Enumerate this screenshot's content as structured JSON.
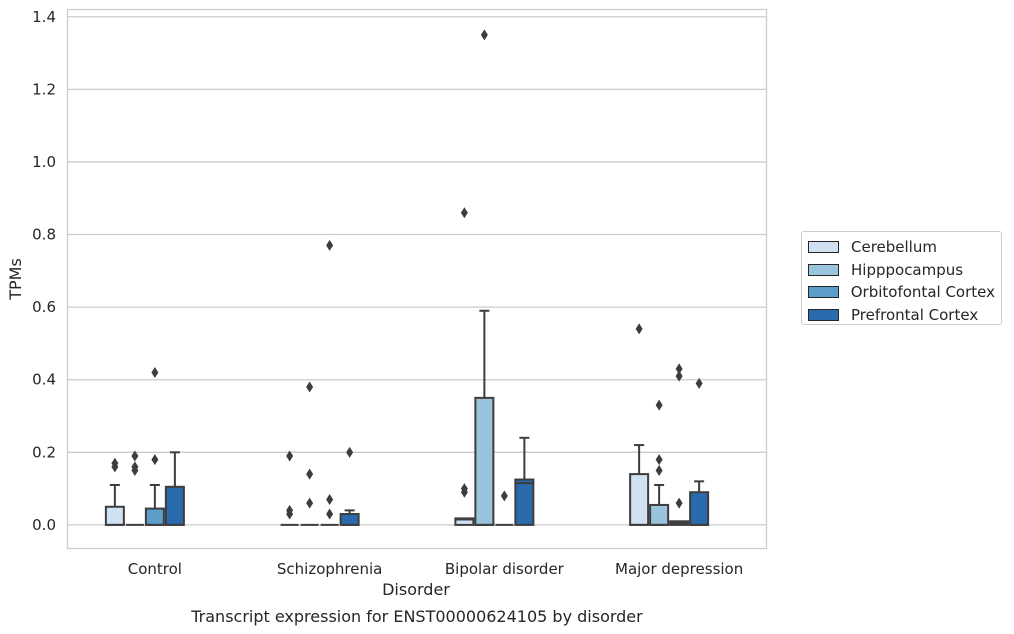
{
  "chart_data": {
    "type": "box",
    "title": "Transcript expression for ENST00000624105 by disorder",
    "xlabel": "Disorder",
    "ylabel": "TPMs",
    "categories": [
      "Control",
      "Schizophrenia",
      "Bipolar disorder",
      "Major depression"
    ],
    "ylim": [
      -0.065,
      1.42
    ],
    "yticks": [
      "0.0",
      "0.2",
      "0.4",
      "0.6",
      "0.8",
      "1.0",
      "1.2",
      "1.4"
    ],
    "grid": "horizontal",
    "legend_position": "right",
    "series": [
      {
        "name": "Cerebellum",
        "color": "#d0e1f2",
        "boxes": [
          {
            "q1": 0.0,
            "median": 0.0,
            "q3": 0.05,
            "whisker_low": 0.0,
            "whisker_high": 0.11,
            "outliers": [
              0.16,
              0.17
            ]
          },
          {
            "q1": 0.0,
            "median": 0.0,
            "q3": 0.0,
            "whisker_low": 0.0,
            "whisker_high": 0.0,
            "outliers": [
              0.03,
              0.04,
              0.19
            ]
          },
          {
            "q1": 0.0,
            "median": 0.015,
            "q3": 0.018,
            "whisker_low": 0.0,
            "whisker_high": 0.018,
            "outliers": [
              0.09,
              0.1,
              0.86
            ]
          },
          {
            "q1": 0.0,
            "median": 0.0,
            "q3": 0.14,
            "whisker_low": 0.0,
            "whisker_high": 0.22,
            "outliers": [
              0.54
            ]
          }
        ]
      },
      {
        "name": "Hipppocampus",
        "color": "#9ac3dd",
        "boxes": [
          {
            "q1": 0.0,
            "median": 0.0,
            "q3": 0.0,
            "whisker_low": 0.0,
            "whisker_high": 0.0,
            "outliers": [
              0.15,
              0.16,
              0.19
            ]
          },
          {
            "q1": 0.0,
            "median": 0.0,
            "q3": 0.0,
            "whisker_low": 0.0,
            "whisker_high": 0.0,
            "outliers": [
              0.06,
              0.14,
              0.38
            ]
          },
          {
            "q1": 0.0,
            "median": 0.0,
            "q3": 0.35,
            "whisker_low": 0.0,
            "whisker_high": 0.59,
            "outliers": [
              1.35
            ]
          },
          {
            "q1": 0.0,
            "median": 0.0,
            "q3": 0.055,
            "whisker_low": 0.0,
            "whisker_high": 0.11,
            "outliers": [
              0.15,
              0.18,
              0.33
            ]
          }
        ]
      },
      {
        "name": "Orbitofontal Cortex",
        "color": "#5a9ec9",
        "boxes": [
          {
            "q1": 0.0,
            "median": 0.0,
            "q3": 0.045,
            "whisker_low": 0.0,
            "whisker_high": 0.11,
            "outliers": [
              0.18,
              0.42
            ]
          },
          {
            "q1": 0.0,
            "median": 0.0,
            "q3": 0.0,
            "whisker_low": 0.0,
            "whisker_high": 0.0,
            "outliers": [
              0.03,
              0.07,
              0.77
            ]
          },
          {
            "q1": 0.0,
            "median": 0.0,
            "q3": 0.0,
            "whisker_low": 0.0,
            "whisker_high": 0.0,
            "outliers": [
              0.08
            ]
          },
          {
            "q1": 0.0,
            "median": 0.005,
            "q3": 0.01,
            "whisker_low": 0.0,
            "whisker_high": 0.01,
            "outliers": [
              0.06,
              0.41,
              0.43
            ]
          }
        ]
      },
      {
        "name": "Prefrontal Cortex",
        "color": "#2a6bad",
        "boxes": [
          {
            "q1": 0.0,
            "median": 0.0,
            "q3": 0.105,
            "whisker_low": 0.0,
            "whisker_high": 0.2,
            "outliers": []
          },
          {
            "q1": 0.0,
            "median": 0.0,
            "q3": 0.03,
            "whisker_low": 0.0,
            "whisker_high": 0.04,
            "outliers": [
              0.2
            ]
          },
          {
            "q1": 0.0,
            "median": 0.115,
            "q3": 0.125,
            "whisker_low": 0.0,
            "whisker_high": 0.24,
            "outliers": []
          },
          {
            "q1": 0.0,
            "median": 0.0,
            "q3": 0.09,
            "whisker_low": 0.0,
            "whisker_high": 0.12,
            "outliers": [
              0.39
            ]
          }
        ]
      }
    ]
  }
}
